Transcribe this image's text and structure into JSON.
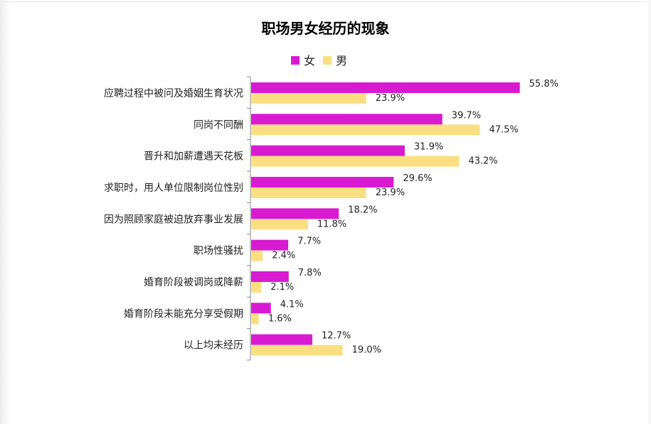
{
  "chart_data": {
    "type": "bar",
    "orientation": "horizontal",
    "title": "职场男女经历的现象",
    "legend_position": "top",
    "categories": [
      "应聘过程中被问及婚姻生育状况",
      "同岗不同酬",
      "晋升和加薪遭遇天花板",
      "求职时，用人单位限制岗位性别",
      "因为照顾家庭被迫放弃事业发展",
      "职场性骚扰",
      "婚育阶段被调岗或降薪",
      "婚育阶段未能充分享受假期",
      "以上均未经历"
    ],
    "series": [
      {
        "name": "女",
        "color": "#d81bd1",
        "values": [
          55.8,
          39.7,
          31.9,
          29.6,
          18.2,
          7.7,
          7.8,
          4.1,
          12.7
        ],
        "labels": [
          "55.8%",
          "39.7%",
          "31.9%",
          "29.6%",
          "18.2%",
          "7.7%",
          "7.8%",
          "4.1%",
          "12.7%"
        ]
      },
      {
        "name": "男",
        "color": "#fadf82",
        "values": [
          23.9,
          47.5,
          43.2,
          23.9,
          11.8,
          2.4,
          2.1,
          1.6,
          19.0
        ],
        "labels": [
          "23.9%",
          "47.5%",
          "43.2%",
          "23.9%",
          "11.8%",
          "2.4%",
          "2.1%",
          "1.6%",
          "19.0%"
        ]
      }
    ],
    "xlim": [
      0,
      56
    ],
    "grid": false
  }
}
